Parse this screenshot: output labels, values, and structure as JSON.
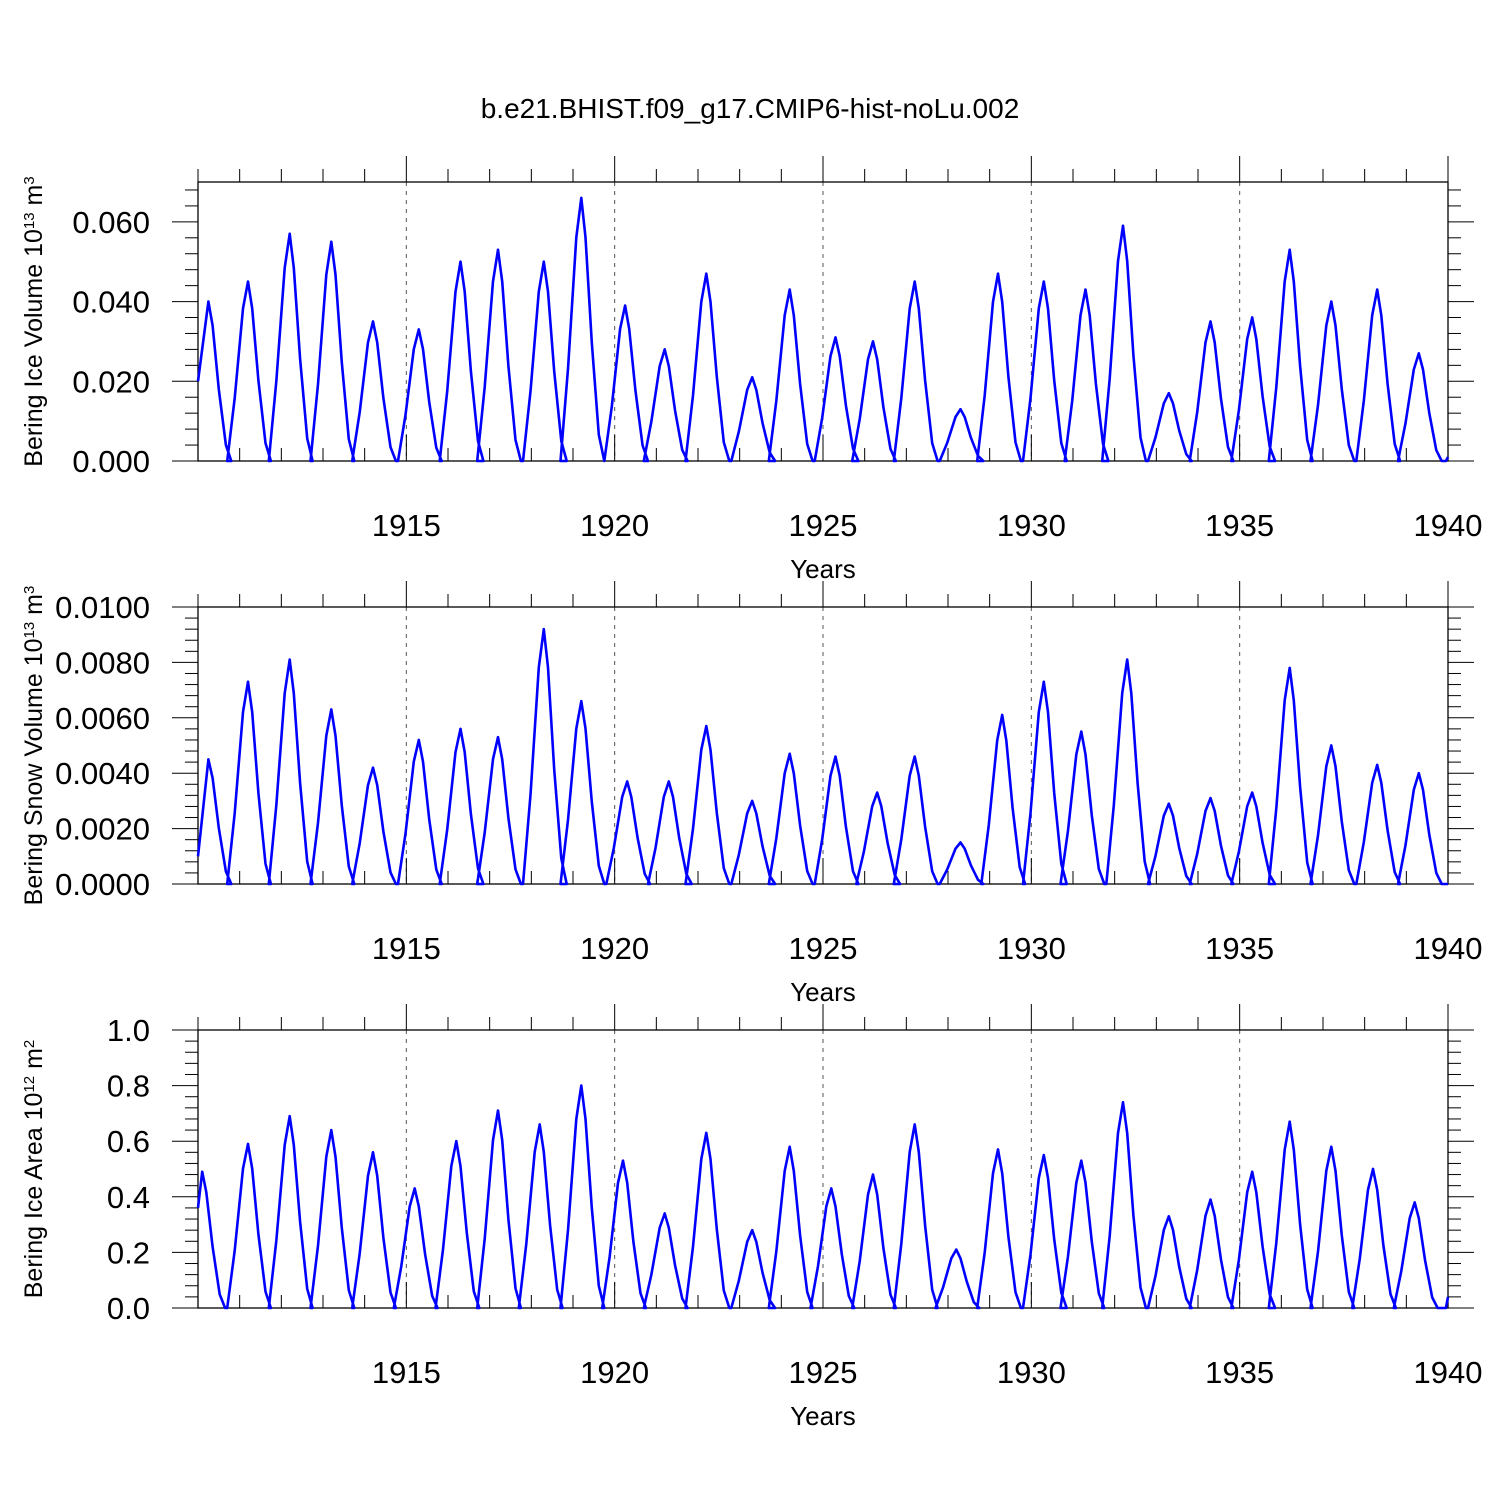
{
  "title": "b.e21.BHIST.f09_g17.CMIP6-hist-noLu.002",
  "colors": {
    "line": "#0000ff",
    "axis": "#000000",
    "grid": "#555555"
  },
  "chart_data": [
    {
      "type": "line",
      "name": "ice-volume",
      "ylabel_parts": [
        "Bering Ice Volume 10",
        "13",
        " m",
        "3"
      ],
      "xlabel": "Years",
      "xlim": [
        1910,
        1940
      ],
      "ylim": [
        0.0,
        0.07
      ],
      "yticks": [
        0.0,
        0.02,
        0.04,
        0.06
      ],
      "ytick_labels": [
        "0.000",
        "0.020",
        "0.040",
        "0.060"
      ],
      "xticks": [
        1915,
        1920,
        1925,
        1930,
        1935,
        1940
      ],
      "xtick_labels": [
        "1915",
        "1920",
        "1925",
        "1930",
        "1935",
        "1940"
      ],
      "grid": "dashed vertical at major x ticks",
      "peaks": [
        [
          1910.25,
          0.04
        ],
        [
          1911.2,
          0.045
        ],
        [
          1912.2,
          0.057
        ],
        [
          1913.2,
          0.055
        ],
        [
          1914.2,
          0.035
        ],
        [
          1915.3,
          0.033
        ],
        [
          1916.3,
          0.05
        ],
        [
          1917.2,
          0.053
        ],
        [
          1918.3,
          0.05
        ],
        [
          1919.2,
          0.066
        ],
        [
          1920.25,
          0.039
        ],
        [
          1921.2,
          0.028
        ],
        [
          1922.2,
          0.047
        ],
        [
          1923.3,
          0.021
        ],
        [
          1924.2,
          0.043
        ],
        [
          1925.3,
          0.031
        ],
        [
          1926.2,
          0.03
        ],
        [
          1927.2,
          0.045
        ],
        [
          1928.3,
          0.013
        ],
        [
          1929.2,
          0.047
        ],
        [
          1930.3,
          0.045
        ],
        [
          1931.3,
          0.043
        ],
        [
          1932.2,
          0.059
        ],
        [
          1933.3,
          0.017
        ],
        [
          1934.3,
          0.035
        ],
        [
          1935.3,
          0.036
        ],
        [
          1936.2,
          0.053
        ],
        [
          1937.2,
          0.04
        ],
        [
          1938.3,
          0.043
        ],
        [
          1939.3,
          0.027
        ]
      ],
      "start_value": 0.02,
      "end_value": 0.001
    },
    {
      "type": "line",
      "name": "snow-volume",
      "ylabel_parts": [
        "Bering Snow Volume 10",
        "13",
        " m",
        "3"
      ],
      "xlabel": "Years",
      "xlim": [
        1910,
        1940
      ],
      "ylim": [
        0.0,
        0.01
      ],
      "yticks": [
        0.0,
        0.002,
        0.004,
        0.006,
        0.008,
        0.01
      ],
      "ytick_labels": [
        "0.0000",
        "0.0020",
        "0.0040",
        "0.0060",
        "0.0080",
        "0.0100"
      ],
      "xticks": [
        1915,
        1920,
        1925,
        1930,
        1935,
        1940
      ],
      "xtick_labels": [
        "1915",
        "1920",
        "1925",
        "1930",
        "1935",
        "1940"
      ],
      "grid": "dashed vertical at major x ticks",
      "peaks": [
        [
          1910.25,
          0.0045
        ],
        [
          1911.2,
          0.0073
        ],
        [
          1912.2,
          0.0081
        ],
        [
          1913.2,
          0.0063
        ],
        [
          1914.2,
          0.0042
        ],
        [
          1915.3,
          0.0052
        ],
        [
          1916.3,
          0.0056
        ],
        [
          1917.2,
          0.0053
        ],
        [
          1918.3,
          0.0092
        ],
        [
          1919.2,
          0.0066
        ],
        [
          1920.3,
          0.0037
        ],
        [
          1921.3,
          0.0037
        ],
        [
          1922.2,
          0.0057
        ],
        [
          1923.3,
          0.003
        ],
        [
          1924.2,
          0.0047
        ],
        [
          1925.3,
          0.0046
        ],
        [
          1926.3,
          0.0033
        ],
        [
          1927.2,
          0.0046
        ],
        [
          1928.3,
          0.0015
        ],
        [
          1929.3,
          0.0061
        ],
        [
          1930.3,
          0.0073
        ],
        [
          1931.2,
          0.0055
        ],
        [
          1932.3,
          0.0081
        ],
        [
          1933.3,
          0.0029
        ],
        [
          1934.3,
          0.0031
        ],
        [
          1935.3,
          0.0033
        ],
        [
          1936.2,
          0.0078
        ],
        [
          1937.2,
          0.005
        ],
        [
          1938.3,
          0.0043
        ],
        [
          1939.3,
          0.004
        ]
      ],
      "start_value": 0.001,
      "end_value": 0.0
    },
    {
      "type": "line",
      "name": "ice-area",
      "ylabel_parts": [
        "Bering Ice Area 10",
        "12",
        " m",
        "2"
      ],
      "xlabel": "Years",
      "xlim": [
        1910,
        1940
      ],
      "ylim": [
        0.0,
        1.0
      ],
      "yticks": [
        0.0,
        0.2,
        0.4,
        0.6,
        0.8,
        1.0
      ],
      "ytick_labels": [
        "0.0",
        "0.2",
        "0.4",
        "0.6",
        "0.8",
        "1.0"
      ],
      "xticks": [
        1915,
        1920,
        1925,
        1930,
        1935,
        1940
      ],
      "xtick_labels": [
        "1915",
        "1920",
        "1925",
        "1930",
        "1935",
        "1940"
      ],
      "grid": "dashed vertical at major x ticks",
      "peaks": [
        [
          1910.1,
          0.49
        ],
        [
          1911.2,
          0.59
        ],
        [
          1912.2,
          0.69
        ],
        [
          1913.2,
          0.64
        ],
        [
          1914.2,
          0.56
        ],
        [
          1915.2,
          0.43
        ],
        [
          1916.2,
          0.6
        ],
        [
          1917.2,
          0.71
        ],
        [
          1918.2,
          0.66
        ],
        [
          1919.2,
          0.8
        ],
        [
          1920.2,
          0.53
        ],
        [
          1921.2,
          0.34
        ],
        [
          1922.2,
          0.63
        ],
        [
          1923.3,
          0.28
        ],
        [
          1924.2,
          0.58
        ],
        [
          1925.2,
          0.43
        ],
        [
          1926.2,
          0.48
        ],
        [
          1927.2,
          0.66
        ],
        [
          1928.2,
          0.21
        ],
        [
          1929.2,
          0.57
        ],
        [
          1930.3,
          0.55
        ],
        [
          1931.2,
          0.53
        ],
        [
          1932.2,
          0.74
        ],
        [
          1933.3,
          0.33
        ],
        [
          1934.3,
          0.39
        ],
        [
          1935.3,
          0.49
        ],
        [
          1936.2,
          0.67
        ],
        [
          1937.2,
          0.58
        ],
        [
          1938.2,
          0.5
        ],
        [
          1939.2,
          0.38
        ]
      ],
      "start_value": 0.36,
      "end_value": 0.04
    }
  ]
}
